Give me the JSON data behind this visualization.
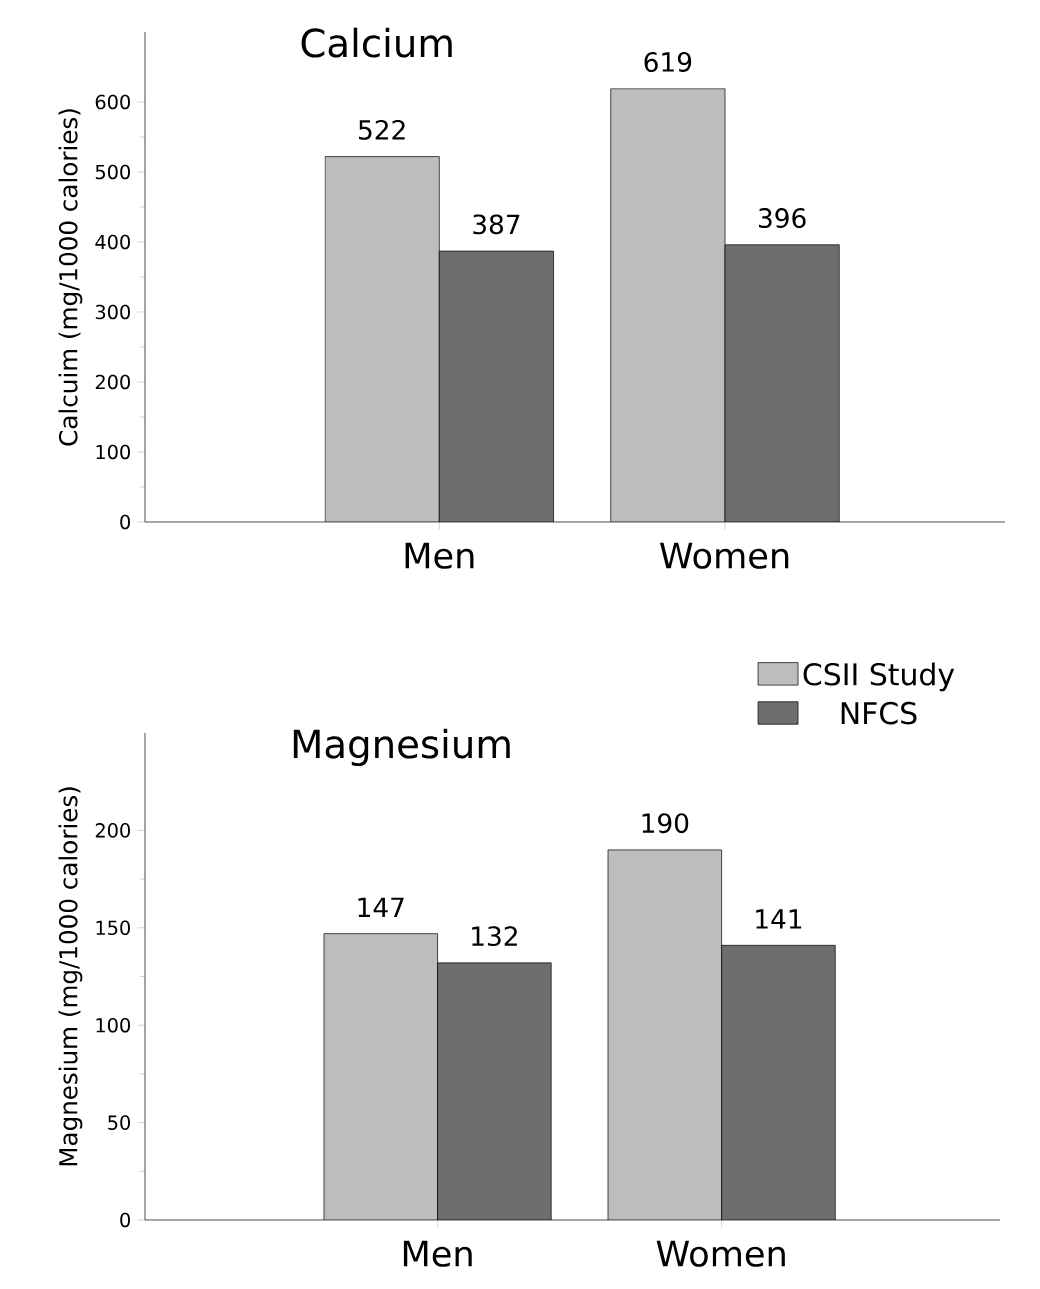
{
  "chart_data": [
    {
      "type": "bar",
      "title": "Calcium",
      "ylabel": "Calcuim (mg/1000 calories)",
      "categories": [
        "Men",
        "Women"
      ],
      "series": [
        {
          "color": "#bdbdbd",
          "values": [
            522,
            619
          ]
        },
        {
          "color": "#6e6e6e",
          "values": [
            387,
            396
          ]
        }
      ],
      "ylim": [
        0,
        700
      ],
      "yticks": [
        0,
        100,
        200,
        300,
        400,
        500,
        600
      ],
      "data_labels": true
    },
    {
      "type": "bar",
      "title": "Magnesium",
      "ylabel": "Magnesium (mg/1000 calories)",
      "categories": [
        "Men",
        "Women"
      ],
      "series": [
        {
          "name": "CSII Study",
          "color": "#bdbdbd",
          "values": [
            147,
            190
          ]
        },
        {
          "name": "NFCS",
          "color": "#6e6e6e",
          "values": [
            132,
            141
          ]
        }
      ],
      "ylim": [
        0,
        250
      ],
      "yticks": [
        0,
        50,
        100,
        150,
        200
      ],
      "data_labels": true,
      "legend": "top right"
    }
  ]
}
